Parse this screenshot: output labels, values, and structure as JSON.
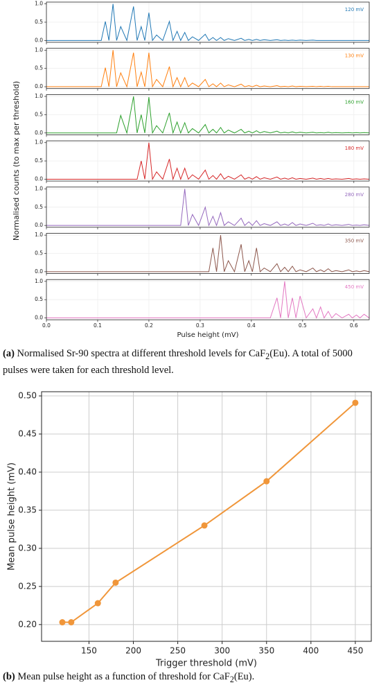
{
  "chart_data": [
    {
      "type": "line",
      "xlabel": "Pulse height (mV)",
      "ylabel": "Normalised counts (to max per threshold)",
      "caption": {
        "label": "(a)",
        "parts": [
          "Normalised Sr-90 spectra at different threshold levels for CaF",
          "2",
          "(Eu). A total of 5000 pulses were taken for each threshold level."
        ]
      },
      "xlim": [
        0,
        0.63
      ],
      "xticks": [
        {
          "value": 0,
          "label": "0.0"
        },
        0.1,
        0.2,
        0.3,
        0.4,
        0.5,
        0.6
      ],
      "ylim": [
        -0.05,
        1.05
      ],
      "yticks": [
        {
          "value": 0,
          "label": "0.0"
        },
        0.5,
        {
          "value": 1,
          "label": "1.0"
        }
      ],
      "grid": true,
      "x": [
        0,
        0.107,
        0.115,
        0.122,
        0.13,
        0.137,
        0.145,
        0.157,
        0.17,
        0.177,
        0.185,
        0.192,
        0.2,
        0.207,
        0.215,
        0.227,
        0.24,
        0.247,
        0.255,
        0.262,
        0.27,
        0.277,
        0.285,
        0.297,
        0.31,
        0.317,
        0.325,
        0.332,
        0.34,
        0.347,
        0.355,
        0.367,
        0.38,
        0.387,
        0.395,
        0.402,
        0.41,
        0.417,
        0.425,
        0.437,
        0.45,
        0.457,
        0.465,
        0.472,
        0.48,
        0.487,
        0.495,
        0.507,
        0.52,
        0.527,
        0.535,
        0.542,
        0.55,
        0.557,
        0.565,
        0.577,
        0.59,
        0.597,
        0.605,
        0.612,
        0.62,
        0.63
      ],
      "series": [
        {
          "name": "120 mV",
          "color": "#1f77b4",
          "values": [
            0,
            0,
            0.52,
            0,
            1.0,
            0,
            0.38,
            0,
            0.93,
            0,
            0.38,
            0,
            0.76,
            0,
            0.15,
            0,
            0.52,
            0,
            0.25,
            0,
            0.22,
            0,
            0.1,
            0,
            0.17,
            0,
            0.08,
            0,
            0.08,
            0,
            0.05,
            0,
            0.06,
            0,
            0.03,
            0,
            0.03,
            0,
            0.02,
            0,
            0.02,
            0,
            0.01,
            0,
            0.01,
            0,
            0.01,
            0,
            0.01,
            0,
            0,
            0,
            0,
            0,
            0,
            0,
            0,
            0,
            0,
            0,
            0,
            0
          ]
        },
        {
          "name": "130 mV",
          "color": "#ff7f0e",
          "values": [
            0,
            0,
            0.52,
            0,
            1.0,
            0,
            0.38,
            0,
            0.93,
            0,
            0.4,
            0,
            0.93,
            0,
            0.2,
            0,
            0.55,
            0,
            0.25,
            0,
            0.25,
            0,
            0.1,
            0,
            0.2,
            0,
            0.08,
            0,
            0.1,
            0,
            0.05,
            0,
            0.07,
            0,
            0.03,
            0,
            0.04,
            0,
            0.02,
            0,
            0.03,
            0,
            0.01,
            0,
            0.02,
            0,
            0.01,
            0,
            0.01,
            0,
            0.01,
            0,
            0.01,
            0,
            0,
            0,
            0,
            0,
            0,
            0,
            0,
            0
          ]
        },
        {
          "name": "160 mV",
          "color": "#2ca02c",
          "values": [
            0,
            0,
            0,
            0,
            0,
            0,
            0.48,
            0,
            1.0,
            0,
            0.5,
            0,
            0.98,
            0,
            0.2,
            0,
            0.55,
            0,
            0.3,
            0,
            0.28,
            0,
            0.12,
            0,
            0.23,
            0,
            0.1,
            0,
            0.15,
            0,
            0.08,
            0,
            0.1,
            0,
            0.05,
            0,
            0.06,
            0,
            0.04,
            0,
            0.05,
            0,
            0.02,
            0,
            0.03,
            0,
            0.02,
            0,
            0.02,
            0,
            0.01,
            0,
            0.02,
            0,
            0.01,
            0,
            0.01,
            0,
            0.01,
            0,
            0.01,
            0
          ]
        },
        {
          "name": "180 mV",
          "color": "#d62728",
          "values": [
            0,
            0,
            0,
            0,
            0,
            0,
            0,
            0,
            0,
            0,
            0.5,
            0,
            1.0,
            0,
            0.2,
            0,
            0.55,
            0,
            0.3,
            0,
            0.3,
            0,
            0.12,
            0,
            0.25,
            0,
            0.1,
            0,
            0.15,
            0,
            0.08,
            0,
            0.12,
            0,
            0.05,
            0,
            0.07,
            0,
            0.04,
            0,
            0.06,
            0,
            0.03,
            0,
            0.04,
            0,
            0.02,
            0,
            0.03,
            0,
            0.02,
            0,
            0.02,
            0,
            0.01,
            0,
            0.02,
            0,
            0.01,
            0,
            0.01,
            0
          ]
        },
        {
          "name": "280 mV",
          "color": "#9467bd",
          "values": [
            0,
            0,
            0,
            0,
            0,
            0,
            0,
            0,
            0,
            0,
            0,
            0,
            0,
            0,
            0,
            0,
            0,
            0,
            0,
            0,
            1.0,
            0,
            0.3,
            0,
            0.5,
            0,
            0.25,
            0,
            0.35,
            0,
            0.1,
            0,
            0.2,
            0,
            0.1,
            0,
            0.13,
            0,
            0.05,
            0,
            0.1,
            0,
            0.04,
            0,
            0.08,
            0,
            0.04,
            0,
            0.06,
            0,
            0.02,
            0,
            0.04,
            0,
            0.02,
            0,
            0.03,
            0,
            0.01,
            0,
            0.02,
            0
          ]
        },
        {
          "name": "350 mV",
          "color": "#8c564b",
          "values": [
            0,
            0,
            0,
            0,
            0,
            0,
            0,
            0,
            0,
            0,
            0,
            0,
            0,
            0,
            0,
            0,
            0,
            0,
            0,
            0,
            0,
            0,
            0,
            0,
            0,
            0,
            0.65,
            0,
            1.0,
            0,
            0.3,
            0,
            0.75,
            0,
            0.3,
            0,
            0.65,
            0,
            0.1,
            0,
            0.22,
            0,
            0.12,
            0,
            0.15,
            0,
            0.05,
            0,
            0.1,
            0,
            0.05,
            0,
            0.08,
            0,
            0.03,
            0,
            0.05,
            0,
            0.02,
            0,
            0.03,
            0
          ]
        },
        {
          "name": "450 mV",
          "color": "#e377c2",
          "values": [
            0,
            0,
            0,
            0,
            0,
            0,
            0,
            0,
            0,
            0,
            0,
            0,
            0,
            0,
            0,
            0,
            0,
            0,
            0,
            0,
            0,
            0,
            0,
            0,
            0,
            0,
            0,
            0,
            0,
            0,
            0,
            0,
            0,
            0,
            0,
            0,
            0,
            0,
            0,
            0,
            0.55,
            0,
            1.0,
            0,
            0.55,
            0,
            0.6,
            0,
            0.25,
            0,
            0.3,
            0,
            0.18,
            0,
            0.12,
            0,
            0.1,
            0,
            0.08,
            0,
            0.1,
            0
          ]
        }
      ]
    },
    {
      "type": "line",
      "xlabel": "Trigger threshold (mV)",
      "ylabel": "Mean pulse height (mV)",
      "caption": {
        "label": "(b)",
        "parts": [
          "Mean pulse height as a function of threshold for CaF",
          "2",
          "(Eu)."
        ]
      },
      "xlim": [
        96.6,
        468
      ],
      "xticks": [
        150,
        200,
        250,
        300,
        350,
        400,
        450
      ],
      "ylim": [
        0.178,
        0.5055
      ],
      "yticks": [
        {
          "value": 0.2,
          "label": "0.20"
        },
        0.25,
        {
          "value": 0.3,
          "label": "0.30"
        },
        0.35,
        {
          "value": 0.4,
          "label": "0.40"
        },
        0.45,
        {
          "value": 0.5,
          "label": "0.50"
        }
      ],
      "grid": true,
      "color": "#f0963a",
      "x": [
        120,
        130,
        160,
        180,
        280,
        350,
        450
      ],
      "values": [
        0.203,
        0.203,
        0.228,
        0.255,
        0.33,
        0.388,
        0.491
      ]
    }
  ]
}
